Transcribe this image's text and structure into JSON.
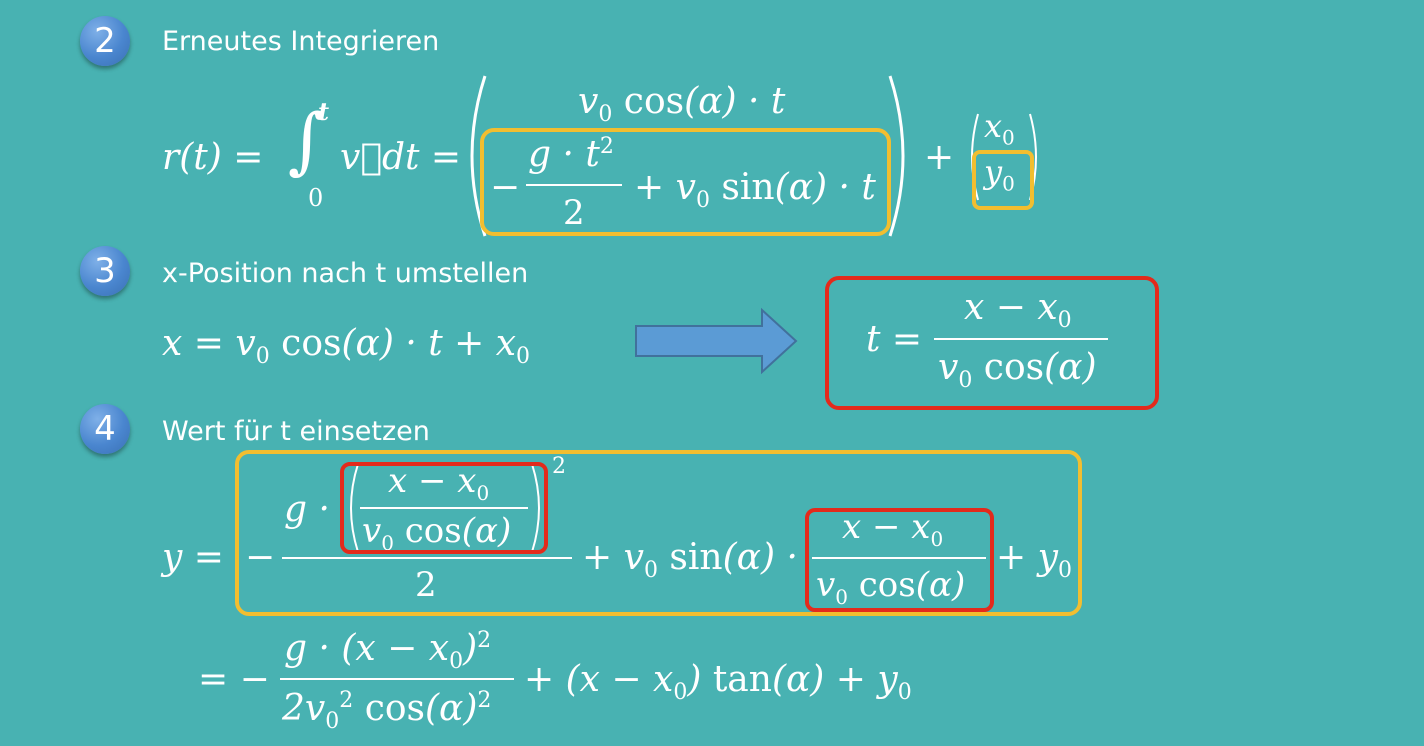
{
  "steps": [
    {
      "number": "2",
      "heading": "Erneutes Integrieren"
    },
    {
      "number": "3",
      "heading": "x-Position nach t umstellen"
    },
    {
      "number": "4",
      "heading": "Wert für t einsetzen"
    }
  ],
  "colors": {
    "background": "#48b2b2",
    "badge": "#4a86cf",
    "highlight_yellow": "#f2be30",
    "highlight_red": "#e32a1c",
    "arrow": "#5b9bd5"
  },
  "icons": [
    "right-arrow-icon"
  ]
}
